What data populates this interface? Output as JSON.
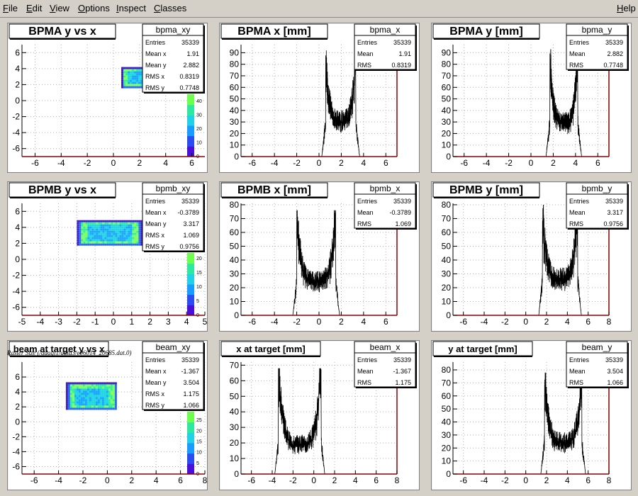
{
  "menu": {
    "file": "File",
    "edit": "Edit",
    "view": "View",
    "options": "Options",
    "inspect": "Inspect",
    "classes": "Classes",
    "help": "Help"
  },
  "caption": "Raster Size (/adaql1/data3/e06014_20685.dat.0)",
  "chart_data": [
    {
      "id": "bpma_xy",
      "type": "heatmap",
      "title": "BPMA y vs x",
      "xlim": [
        -7,
        7
      ],
      "ylim": [
        -7,
        7
      ],
      "xticks": [
        -6,
        -4,
        -2,
        0,
        2,
        4,
        6
      ],
      "yticks": [
        -6,
        -4,
        -2,
        0,
        2,
        4,
        6
      ],
      "region": {
        "x": [
          0.6,
          3.3
        ],
        "y": [
          1.7,
          4.2
        ]
      },
      "zticks": [
        0,
        10,
        20,
        30,
        40
      ],
      "zmax": 45,
      "stats": {
        "name": "bpma_xy",
        "rows": [
          [
            "Entries",
            "35339"
          ],
          [
            "Mean x",
            "1.91"
          ],
          [
            "Mean y",
            "2.882"
          ],
          [
            "RMS x",
            "0.8319"
          ],
          [
            "RMS y",
            "0.7748"
          ]
        ]
      }
    },
    {
      "id": "bpma_x",
      "type": "line",
      "title": "BPMA x [mm]",
      "xlim": [
        -7,
        7
      ],
      "ylim": [
        0,
        97
      ],
      "xticks": [
        -6,
        -4,
        -2,
        0,
        2,
        4,
        6
      ],
      "yticks": [
        0,
        10,
        20,
        30,
        40,
        50,
        60,
        70,
        80,
        90
      ],
      "shape": {
        "lo": 0.6,
        "hi": 3.3,
        "edge": 92,
        "min": 35
      },
      "stats": {
        "name": "bpma_x",
        "rows": [
          [
            "Entries",
            "35339"
          ],
          [
            "Mean",
            "1.91"
          ],
          [
            "RMS",
            "0.8319"
          ]
        ]
      }
    },
    {
      "id": "bpma_y",
      "type": "line",
      "title": "BPMA y [mm]",
      "xlim": [
        -7,
        7
      ],
      "ylim": [
        0,
        97
      ],
      "xticks": [
        -6,
        -4,
        -2,
        0,
        2,
        4,
        6
      ],
      "yticks": [
        0,
        10,
        20,
        30,
        40,
        50,
        60,
        70,
        80,
        90
      ],
      "shape": {
        "lo": 1.7,
        "hi": 4.2,
        "edge": 93,
        "min": 34
      },
      "stats": {
        "name": "bpma_y",
        "rows": [
          [
            "Entries",
            "35339"
          ],
          [
            "Mean",
            "2.882"
          ],
          [
            "RMS",
            "0.7748"
          ]
        ]
      }
    },
    {
      "id": "bpmb_xy",
      "type": "heatmap",
      "title": "BPMB y vs x",
      "xlim": [
        -5,
        5
      ],
      "ylim": [
        -7,
        7
      ],
      "xticks": [
        -5,
        -4,
        -3,
        -2,
        -1,
        0,
        1,
        2,
        3,
        4,
        5
      ],
      "yticks": [
        -6,
        -4,
        -2,
        0,
        2,
        4,
        6
      ],
      "region": {
        "x": [
          -2.0,
          1.5
        ],
        "y": [
          1.9,
          4.9
        ]
      },
      "zticks": [
        0,
        5,
        10,
        15,
        20
      ],
      "zmax": 22,
      "stats": {
        "name": "bpmb_xy",
        "rows": [
          [
            "Entries",
            "35339"
          ],
          [
            "Mean x",
            "-0.3789"
          ],
          [
            "Mean y",
            "3.317"
          ],
          [
            "RMS x",
            "1.069"
          ],
          [
            "RMS y",
            "0.9756"
          ]
        ]
      }
    },
    {
      "id": "bpmb_x",
      "type": "line",
      "title": "BPMB x [mm]",
      "xlim": [
        -7,
        7
      ],
      "ylim": [
        0,
        81
      ],
      "xticks": [
        -6,
        -4,
        -2,
        0,
        2,
        4,
        6
      ],
      "yticks": [
        0,
        10,
        20,
        30,
        40,
        50,
        60,
        70,
        80
      ],
      "shape": {
        "lo": -2.0,
        "hi": 1.5,
        "edge": 76,
        "min": 28
      },
      "stats": {
        "name": "bpmb_x",
        "rows": [
          [
            "Entries",
            "35339"
          ],
          [
            "Mean",
            "-0.3789"
          ],
          [
            "RMS",
            "1.069"
          ]
        ]
      }
    },
    {
      "id": "bpmb_y",
      "type": "line",
      "title": "BPMB y [mm]",
      "xlim": [
        -7,
        8
      ],
      "ylim": [
        0,
        81
      ],
      "xticks": [
        -6,
        -4,
        -2,
        0,
        2,
        4,
        6,
        8
      ],
      "yticks": [
        0,
        10,
        20,
        30,
        40,
        50,
        60,
        70,
        80
      ],
      "shape": {
        "lo": 1.6,
        "hi": 5.0,
        "edge": 80,
        "min": 30
      },
      "stats": {
        "name": "bpmb_y",
        "rows": [
          [
            "Entries",
            "35339"
          ],
          [
            "Mean",
            "3.317"
          ],
          [
            "RMS",
            "0.9756"
          ]
        ]
      }
    },
    {
      "id": "beam_xy",
      "type": "heatmap",
      "title": "beam at target y vs x",
      "xlim": [
        -7,
        8
      ],
      "ylim": [
        -7,
        8
      ],
      "xticks": [
        -6,
        -4,
        -2,
        0,
        2,
        4,
        6,
        8
      ],
      "yticks": [
        -6,
        -4,
        -2,
        0,
        2,
        4,
        6
      ],
      "region": {
        "x": [
          -3.4,
          0.7
        ],
        "y": [
          1.7,
          5.3
        ]
      },
      "zticks": [
        0,
        5,
        10,
        15,
        20,
        25
      ],
      "zmax": 29,
      "stats": {
        "name": "beam_xy",
        "rows": [
          [
            "Entries",
            "35339"
          ],
          [
            "Mean x",
            "-1.367"
          ],
          [
            "Mean y",
            "3.504"
          ],
          [
            "RMS x",
            "1.175"
          ],
          [
            "RMS y",
            "1.066"
          ]
        ]
      }
    },
    {
      "id": "beam_x",
      "type": "line",
      "title": "x at target [mm]",
      "xlim": [
        -7,
        8
      ],
      "ylim": [
        0,
        72
      ],
      "xticks": [
        -6,
        -4,
        -2,
        0,
        2,
        4,
        6,
        8
      ],
      "yticks": [
        0,
        10,
        20,
        30,
        40,
        50,
        60,
        70
      ],
      "shape": {
        "lo": -3.4,
        "hi": 0.7,
        "edge": 68,
        "min": 22
      },
      "stats": {
        "name": "beam_x",
        "rows": [
          [
            "Entries",
            "35339"
          ],
          [
            "Mean",
            "-1.367"
          ],
          [
            "RMS",
            "1.175"
          ]
        ]
      }
    },
    {
      "id": "beam_y",
      "type": "line",
      "title": "y at target [mm]",
      "xlim": [
        -7,
        8
      ],
      "ylim": [
        0,
        86
      ],
      "xticks": [
        -6,
        -4,
        -2,
        0,
        2,
        4,
        6,
        8
      ],
      "yticks": [
        0,
        10,
        20,
        30,
        40,
        50,
        60,
        70,
        80
      ],
      "shape": {
        "lo": 1.8,
        "hi": 5.4,
        "edge": 78,
        "min": 28
      },
      "stats": {
        "name": "beam_y",
        "rows": [
          [
            "Entries",
            "35339"
          ],
          [
            "Mean",
            "3.504"
          ],
          [
            "RMS",
            "1.066"
          ]
        ]
      }
    }
  ]
}
